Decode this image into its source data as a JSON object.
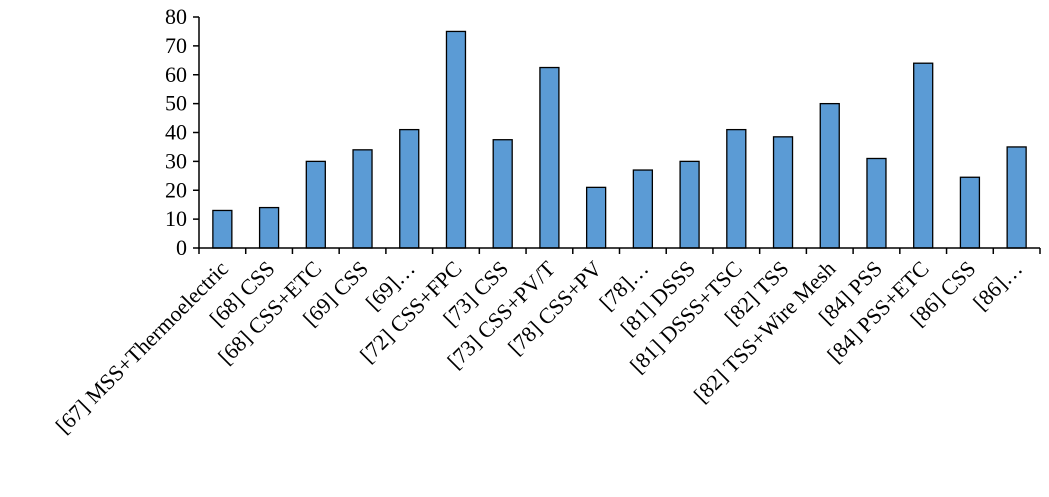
{
  "chart_data": {
    "type": "bar",
    "title": "",
    "xlabel": "",
    "ylabel": "",
    "ylim": [
      0,
      80
    ],
    "yticks": [
      0,
      10,
      20,
      30,
      40,
      50,
      60,
      70,
      80
    ],
    "grid": false,
    "bar_color": "#5b9bd5",
    "bar_edge_color": "#000000",
    "categories": [
      "[67] MSS+Thermoelectric",
      "[68] CSS",
      "[68] CSS+ETC",
      "[69] CSS",
      "[69]…",
      "[72] CSS+FPC",
      "[73] CSS",
      "[73] CSS+PV/T",
      "[78] CSS+PV",
      "[78]…",
      "[81] DSSS",
      "[81] DSSS+TSC",
      "[82] TSS",
      "[82] TSS+Wire Mesh",
      "[84] PSS",
      "[84] PSS+ETC",
      "[86] CSS",
      "[86]…"
    ],
    "values": [
      13,
      14,
      30,
      34,
      41,
      75,
      37.5,
      62.5,
      21,
      27,
      30,
      41,
      38.5,
      50,
      31,
      64,
      24.5,
      35
    ]
  }
}
